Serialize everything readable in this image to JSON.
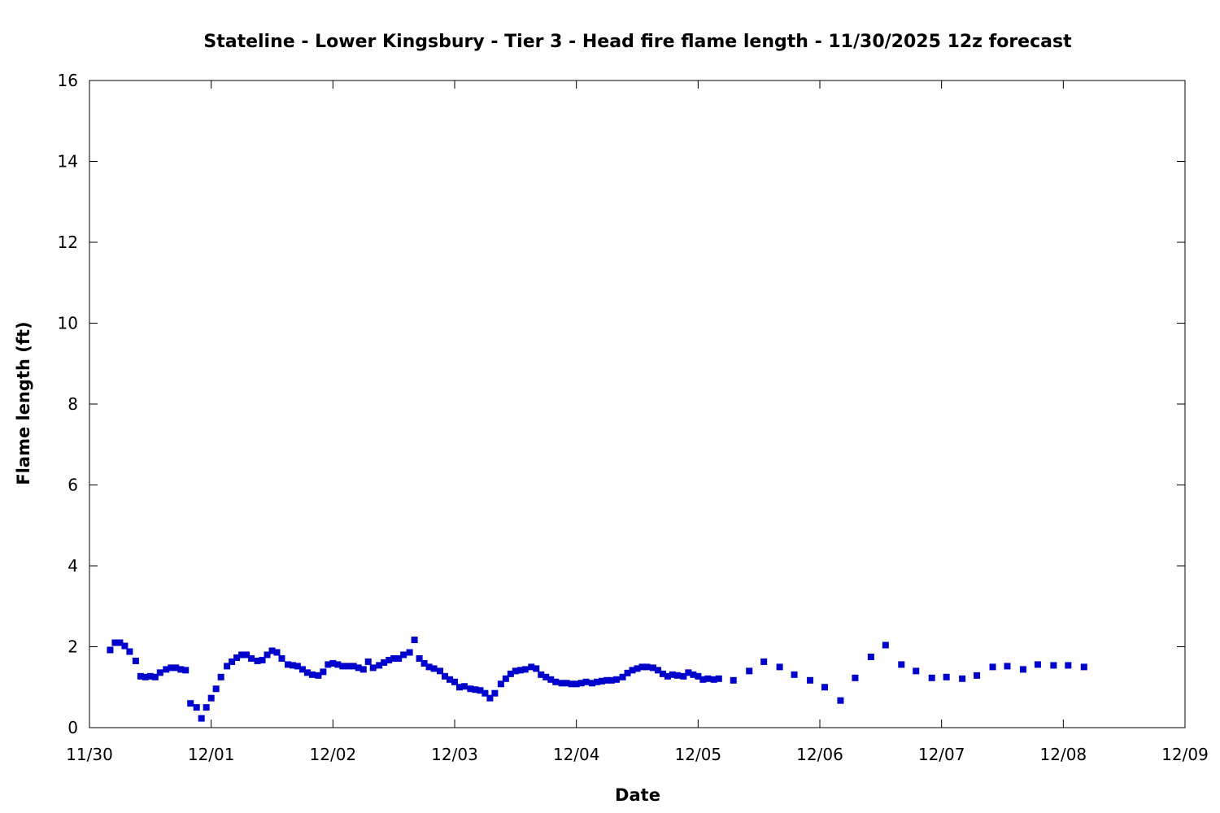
{
  "chart_data": {
    "type": "scatter",
    "title": "Stateline - Lower Kingsbury - Tier 3 - Head fire flame length - 11/30/2025 12z forecast",
    "xlabel": "Date",
    "ylabel": "Flame length (ft)",
    "xlim": [
      0,
      9
    ],
    "ylim": [
      0,
      16
    ],
    "x_ticks": [
      {
        "value": 0,
        "label": "11/30"
      },
      {
        "value": 1,
        "label": "12/01"
      },
      {
        "value": 2,
        "label": "12/02"
      },
      {
        "value": 3,
        "label": "12/03"
      },
      {
        "value": 4,
        "label": "12/04"
      },
      {
        "value": 5,
        "label": "12/05"
      },
      {
        "value": 6,
        "label": "12/06"
      },
      {
        "value": 7,
        "label": "12/07"
      },
      {
        "value": 8,
        "label": "12/08"
      },
      {
        "value": 9,
        "label": "12/09"
      }
    ],
    "y_ticks": [
      0,
      2,
      4,
      6,
      8,
      10,
      12,
      14,
      16
    ],
    "marker_color": "#0000cc",
    "grid": false,
    "series": [
      {
        "points": [
          [
            0.17,
            1.92
          ],
          [
            0.21,
            2.1
          ],
          [
            0.25,
            2.1
          ],
          [
            0.29,
            2.02
          ],
          [
            0.33,
            1.88
          ],
          [
            0.38,
            1.65
          ],
          [
            0.42,
            1.27
          ],
          [
            0.46,
            1.25
          ],
          [
            0.5,
            1.27
          ],
          [
            0.54,
            1.25
          ],
          [
            0.58,
            1.36
          ],
          [
            0.63,
            1.44
          ],
          [
            0.67,
            1.48
          ],
          [
            0.71,
            1.48
          ],
          [
            0.75,
            1.44
          ],
          [
            0.79,
            1.42
          ],
          [
            0.83,
            0.6
          ],
          [
            0.88,
            0.5
          ],
          [
            0.92,
            0.23
          ],
          [
            0.96,
            0.5
          ],
          [
            1.0,
            0.73
          ],
          [
            1.04,
            0.96
          ],
          [
            1.08,
            1.25
          ],
          [
            1.13,
            1.52
          ],
          [
            1.17,
            1.63
          ],
          [
            1.21,
            1.73
          ],
          [
            1.25,
            1.8
          ],
          [
            1.29,
            1.8
          ],
          [
            1.33,
            1.71
          ],
          [
            1.38,
            1.65
          ],
          [
            1.42,
            1.67
          ],
          [
            1.46,
            1.8
          ],
          [
            1.5,
            1.9
          ],
          [
            1.54,
            1.86
          ],
          [
            1.58,
            1.71
          ],
          [
            1.63,
            1.56
          ],
          [
            1.67,
            1.54
          ],
          [
            1.71,
            1.52
          ],
          [
            1.75,
            1.44
          ],
          [
            1.79,
            1.36
          ],
          [
            1.83,
            1.31
          ],
          [
            1.88,
            1.29
          ],
          [
            1.92,
            1.38
          ],
          [
            1.96,
            1.56
          ],
          [
            2.0,
            1.59
          ],
          [
            2.04,
            1.56
          ],
          [
            2.08,
            1.52
          ],
          [
            2.13,
            1.52
          ],
          [
            2.17,
            1.52
          ],
          [
            2.21,
            1.48
          ],
          [
            2.25,
            1.44
          ],
          [
            2.29,
            1.63
          ],
          [
            2.33,
            1.48
          ],
          [
            2.38,
            1.54
          ],
          [
            2.42,
            1.61
          ],
          [
            2.46,
            1.67
          ],
          [
            2.5,
            1.71
          ],
          [
            2.54,
            1.71
          ],
          [
            2.58,
            1.8
          ],
          [
            2.63,
            1.86
          ],
          [
            2.67,
            2.17
          ],
          [
            2.71,
            1.71
          ],
          [
            2.75,
            1.59
          ],
          [
            2.79,
            1.5
          ],
          [
            2.83,
            1.46
          ],
          [
            2.88,
            1.4
          ],
          [
            2.92,
            1.27
          ],
          [
            2.96,
            1.19
          ],
          [
            3.0,
            1.13
          ],
          [
            3.04,
            1.0
          ],
          [
            3.08,
            1.02
          ],
          [
            3.13,
            0.96
          ],
          [
            3.17,
            0.94
          ],
          [
            3.21,
            0.92
          ],
          [
            3.25,
            0.85
          ],
          [
            3.29,
            0.73
          ],
          [
            3.33,
            0.85
          ],
          [
            3.38,
            1.08
          ],
          [
            3.42,
            1.21
          ],
          [
            3.46,
            1.33
          ],
          [
            3.5,
            1.4
          ],
          [
            3.54,
            1.42
          ],
          [
            3.58,
            1.44
          ],
          [
            3.63,
            1.5
          ],
          [
            3.67,
            1.46
          ],
          [
            3.71,
            1.31
          ],
          [
            3.75,
            1.25
          ],
          [
            3.79,
            1.19
          ],
          [
            3.83,
            1.13
          ],
          [
            3.88,
            1.1
          ],
          [
            3.92,
            1.1
          ],
          [
            3.96,
            1.08
          ],
          [
            4.0,
            1.08
          ],
          [
            4.04,
            1.1
          ],
          [
            4.08,
            1.13
          ],
          [
            4.13,
            1.1
          ],
          [
            4.17,
            1.13
          ],
          [
            4.21,
            1.15
          ],
          [
            4.25,
            1.17
          ],
          [
            4.29,
            1.17
          ],
          [
            4.33,
            1.19
          ],
          [
            4.38,
            1.25
          ],
          [
            4.42,
            1.35
          ],
          [
            4.46,
            1.42
          ],
          [
            4.5,
            1.46
          ],
          [
            4.54,
            1.5
          ],
          [
            4.58,
            1.5
          ],
          [
            4.63,
            1.48
          ],
          [
            4.67,
            1.42
          ],
          [
            4.71,
            1.33
          ],
          [
            4.75,
            1.27
          ],
          [
            4.79,
            1.31
          ],
          [
            4.83,
            1.29
          ],
          [
            4.88,
            1.27
          ],
          [
            4.92,
            1.36
          ],
          [
            4.96,
            1.31
          ],
          [
            5.0,
            1.27
          ],
          [
            5.04,
            1.19
          ],
          [
            5.08,
            1.21
          ],
          [
            5.13,
            1.19
          ],
          [
            5.17,
            1.21
          ],
          [
            5.29,
            1.17
          ],
          [
            5.42,
            1.4
          ],
          [
            5.54,
            1.63
          ],
          [
            5.67,
            1.5
          ],
          [
            5.79,
            1.31
          ],
          [
            5.92,
            1.17
          ],
          [
            6.04,
            1.0
          ],
          [
            6.17,
            0.67
          ],
          [
            6.29,
            1.23
          ],
          [
            6.42,
            1.75
          ],
          [
            6.54,
            2.04
          ],
          [
            6.67,
            1.56
          ],
          [
            6.79,
            1.4
          ],
          [
            6.92,
            1.23
          ],
          [
            7.04,
            1.25
          ],
          [
            7.17,
            1.21
          ],
          [
            7.29,
            1.29
          ],
          [
            7.42,
            1.5
          ],
          [
            7.54,
            1.52
          ],
          [
            7.67,
            1.44
          ],
          [
            7.79,
            1.56
          ],
          [
            7.92,
            1.54
          ],
          [
            8.04,
            1.54
          ],
          [
            8.17,
            1.5
          ]
        ]
      }
    ]
  }
}
